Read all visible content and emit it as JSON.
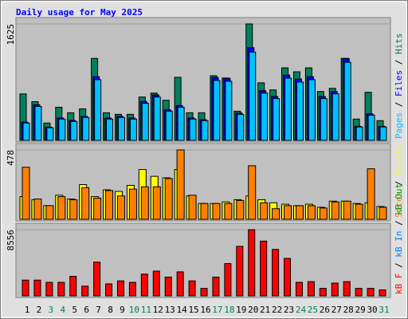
{
  "chart_data": [
    {
      "type": "bar",
      "title": "Daily usage for May 2025",
      "title_color": "#0000ff",
      "ylim": [
        0,
        1625
      ],
      "yticks": [
        1625
      ],
      "legend_separator": " / ",
      "series": [
        {
          "name": "Hits",
          "color": "#00805c",
          "values": [
            648,
            540,
            242,
            462,
            385,
            440,
            1144,
            385,
            363,
            363,
            605,
            660,
            560,
            880,
            385,
            385,
            902,
            870,
            407,
            1625,
            803,
            704,
            1012,
            957,
            1012,
            682,
            726,
            1144,
            297,
            671,
            275
          ]
        },
        {
          "name": "Files",
          "color": "#0000ff",
          "values": [
            255,
            497,
            185,
            312,
            277,
            335,
            889,
            312,
            335,
            312,
            543,
            635,
            427,
            485,
            312,
            289,
            878,
            866,
            381,
            1294,
            693,
            612,
            912,
            855,
            889,
            612,
            681,
            1143,
            196,
            370,
            196
          ]
        },
        {
          "name": "Pages",
          "color": "#00c0ff",
          "values": [
            242,
            473,
            176,
            297,
            264,
            319,
            847,
            297,
            319,
            297,
            517,
            605,
            407,
            462,
            297,
            275,
            836,
            825,
            363,
            1232,
            660,
            583,
            869,
            814,
            847,
            583,
            649,
            1089,
            187,
            352,
            187
          ]
        }
      ]
    },
    {
      "type": "bar",
      "ylim": [
        0,
        478
      ],
      "yticks": [
        478
      ],
      "legend_separator": " / ",
      "series": [
        {
          "name": "Visits",
          "color": "#ffff00",
          "values": [
            156,
            135,
            94,
            166,
            140,
            239,
            156,
            203,
            192,
            234,
            343,
            296,
            286,
            343,
            161,
            109,
            109,
            120,
            135,
            161,
            135,
            114,
            104,
            94,
            104,
            83,
            125,
            125,
            109,
            114,
            88
          ]
        },
        {
          "name": "Sites",
          "color": "#ff8000",
          "values": [
            359,
            140,
            94,
            156,
            135,
            218,
            146,
            198,
            161,
            208,
            224,
            224,
            281,
            478,
            166,
            109,
            109,
            109,
            130,
            369,
            114,
            73,
            94,
            94,
            94,
            78,
            120,
            125,
            104,
            348,
            83
          ]
        }
      ]
    },
    {
      "type": "bar",
      "ylim": [
        0,
        8556
      ],
      "yticks": [
        8556
      ],
      "legend_separator": " / ",
      "categories": [
        "1",
        "2",
        "3",
        "4",
        "5",
        "6",
        "7",
        "8",
        "9",
        "10",
        "11",
        "12",
        "13",
        "14",
        "15",
        "16",
        "17",
        "18",
        "19",
        "20",
        "21",
        "22",
        "23",
        "24",
        "25",
        "26",
        "27",
        "28",
        "29",
        "30",
        "31"
      ],
      "category_colors": [
        "#000000",
        "#000000",
        "#00805c",
        "#00805c",
        "#000000",
        "#000000",
        "#000000",
        "#000000",
        "#000000",
        "#00805c",
        "#00805c",
        "#000000",
        "#000000",
        "#000000",
        "#000000",
        "#000000",
        "#00805c",
        "#00805c",
        "#000000",
        "#000000",
        "#000000",
        "#000000",
        "#000000",
        "#00805c",
        "#00805c",
        "#000000",
        "#000000",
        "#000000",
        "#000000",
        "#000000",
        "#00805c"
      ],
      "series": [
        {
          "name": "kB F",
          "color": "#ff0000",
          "values": [
            2037,
            2037,
            1746,
            1746,
            2522,
            1261,
            4365,
            1552,
            1940,
            1746,
            2813,
            3201,
            2425,
            3104,
            1940,
            970,
            2425,
            4171,
            6402,
            8556,
            7081,
            6014,
            4850,
            1746,
            1843,
            970,
            1649,
            1843,
            970,
            970,
            776
          ]
        }
      ],
      "legend_extra": [
        {
          "name": "kB In",
          "color": "#0080ff"
        },
        {
          "name": "kB Out",
          "color": "#00a000"
        }
      ]
    }
  ]
}
